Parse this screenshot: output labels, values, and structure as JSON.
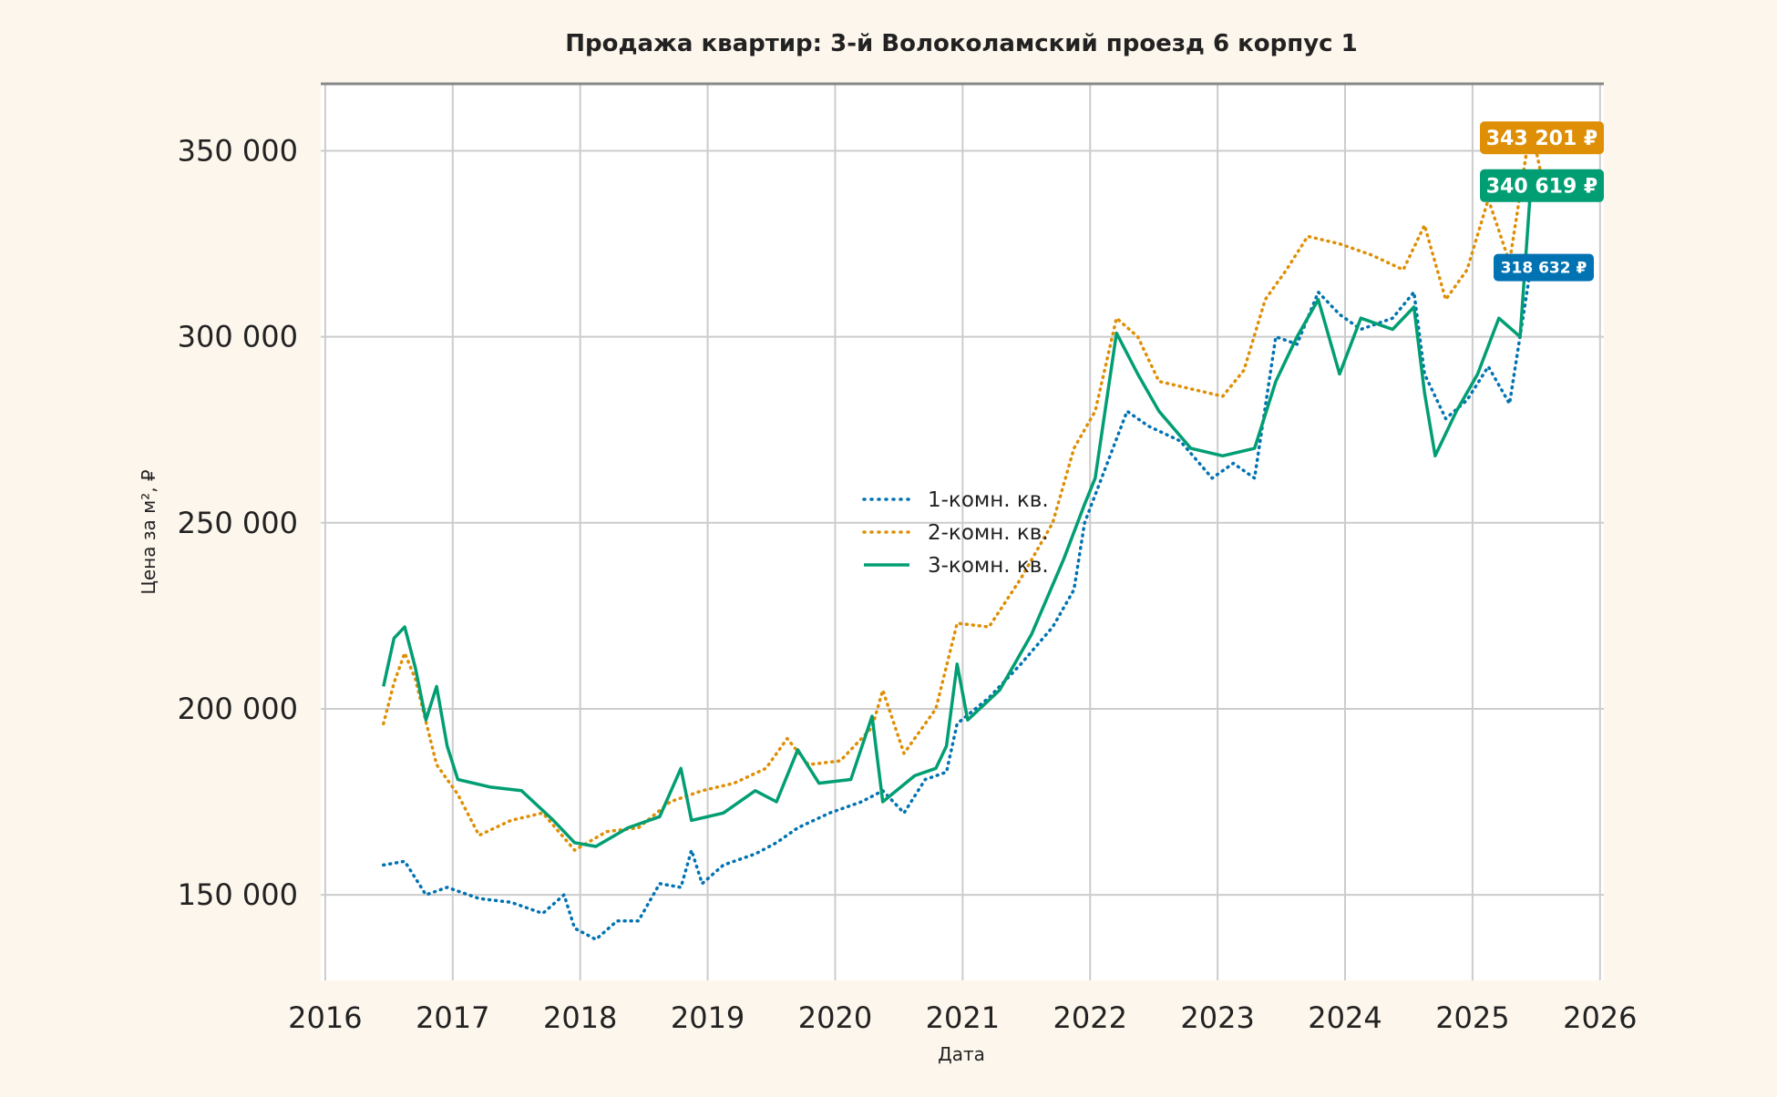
{
  "chart_data": {
    "type": "line",
    "title": "Продажа квартир: 3-й Волоколамский проезд 6 корпус 1",
    "xlabel": "Дата",
    "ylabel": "Цена за м², ₽",
    "xlim": [
      "2016-01",
      "2026-01"
    ],
    "ylim": [
      127000,
      368000
    ],
    "x_ticks": [
      "2016",
      "2017",
      "2018",
      "2019",
      "2020",
      "2021",
      "2022",
      "2023",
      "2024",
      "2025",
      "2026"
    ],
    "y_ticks": [
      {
        "value": 150000,
        "label": "150 000"
      },
      {
        "value": 200000,
        "label": "200 000"
      },
      {
        "value": 250000,
        "label": "250 000"
      },
      {
        "value": 300000,
        "label": "300 000"
      },
      {
        "value": 350000,
        "label": "350 000"
      }
    ],
    "grid": true,
    "legend_position": "center",
    "series": [
      {
        "name": "1-комн. кв.",
        "color": "#0173b2",
        "style": "dotted",
        "last_label": "318 632 ₽",
        "points": [
          [
            "2016-06",
            158000
          ],
          [
            "2016-08",
            159000
          ],
          [
            "2016-10",
            150000
          ],
          [
            "2016-12",
            152000
          ],
          [
            "2017-03",
            149000
          ],
          [
            "2017-06",
            148000
          ],
          [
            "2017-09",
            145000
          ],
          [
            "2017-11",
            150000
          ],
          [
            "2017-12",
            141000
          ],
          [
            "2018-02",
            138000
          ],
          [
            "2018-04",
            143000
          ],
          [
            "2018-06",
            143000
          ],
          [
            "2018-08",
            153000
          ],
          [
            "2018-10",
            152000
          ],
          [
            "2018-11",
            162000
          ],
          [
            "2018-12",
            153000
          ],
          [
            "2019-02",
            158000
          ],
          [
            "2019-05",
            161000
          ],
          [
            "2019-07",
            164000
          ],
          [
            "2019-09",
            168000
          ],
          [
            "2019-12",
            172000
          ],
          [
            "2020-03",
            175000
          ],
          [
            "2020-05",
            178000
          ],
          [
            "2020-07",
            172000
          ],
          [
            "2020-09",
            181000
          ],
          [
            "2020-11",
            183000
          ],
          [
            "2020-12",
            196000
          ],
          [
            "2021-03",
            203000
          ],
          [
            "2021-06",
            212000
          ],
          [
            "2021-09",
            222000
          ],
          [
            "2021-11",
            232000
          ],
          [
            "2021-12",
            250000
          ],
          [
            "2022-02",
            265000
          ],
          [
            "2022-04",
            280000
          ],
          [
            "2022-06",
            276000
          ],
          [
            "2022-09",
            272000
          ],
          [
            "2022-12",
            262000
          ],
          [
            "2023-02",
            266000
          ],
          [
            "2023-04",
            262000
          ],
          [
            "2023-06",
            300000
          ],
          [
            "2023-08",
            298000
          ],
          [
            "2023-10",
            312000
          ],
          [
            "2023-12",
            306000
          ],
          [
            "2024-02",
            302000
          ],
          [
            "2024-05",
            305000
          ],
          [
            "2024-07",
            312000
          ],
          [
            "2024-08",
            290000
          ],
          [
            "2024-10",
            278000
          ],
          [
            "2024-12",
            283000
          ],
          [
            "2025-02",
            292000
          ],
          [
            "2025-04",
            282000
          ],
          [
            "2025-06",
            318632
          ]
        ]
      },
      {
        "name": "2-комн. кв.",
        "color": "#de8f05",
        "style": "dotted",
        "last_label": "343 201 ₽",
        "points": [
          [
            "2016-06",
            196000
          ],
          [
            "2016-07",
            207000
          ],
          [
            "2016-08",
            215000
          ],
          [
            "2016-09",
            208000
          ],
          [
            "2016-11",
            185000
          ],
          [
            "2017-01",
            177000
          ],
          [
            "2017-03",
            166000
          ],
          [
            "2017-06",
            170000
          ],
          [
            "2017-09",
            172000
          ],
          [
            "2017-12",
            162000
          ],
          [
            "2018-03",
            167000
          ],
          [
            "2018-06",
            168000
          ],
          [
            "2018-09",
            175000
          ],
          [
            "2018-12",
            178000
          ],
          [
            "2019-03",
            180000
          ],
          [
            "2019-06",
            184000
          ],
          [
            "2019-08",
            192000
          ],
          [
            "2019-10",
            185000
          ],
          [
            "2020-01",
            186000
          ],
          [
            "2020-04",
            195000
          ],
          [
            "2020-05",
            205000
          ],
          [
            "2020-07",
            188000
          ],
          [
            "2020-10",
            200000
          ],
          [
            "2020-12",
            223000
          ],
          [
            "2021-03",
            222000
          ],
          [
            "2021-06",
            235000
          ],
          [
            "2021-09",
            250000
          ],
          [
            "2021-11",
            270000
          ],
          [
            "2022-01",
            280000
          ],
          [
            "2022-03",
            305000
          ],
          [
            "2022-05",
            300000
          ],
          [
            "2022-07",
            288000
          ],
          [
            "2022-10",
            286000
          ],
          [
            "2023-01",
            284000
          ],
          [
            "2023-03",
            291000
          ],
          [
            "2023-05",
            310000
          ],
          [
            "2023-07",
            318000
          ],
          [
            "2023-09",
            327000
          ],
          [
            "2023-12",
            325000
          ],
          [
            "2024-03",
            322000
          ],
          [
            "2024-06",
            318000
          ],
          [
            "2024-08",
            330000
          ],
          [
            "2024-10",
            310000
          ],
          [
            "2024-12",
            318000
          ],
          [
            "2025-02",
            337000
          ],
          [
            "2025-04",
            320000
          ],
          [
            "2025-06",
            357000
          ],
          [
            "2025-07",
            343201
          ]
        ]
      },
      {
        "name": "3-комн. кв.",
        "color": "#029e73",
        "style": "solid",
        "last_label": "340 619 ₽",
        "points": [
          [
            "2016-06",
            206000
          ],
          [
            "2016-07",
            219000
          ],
          [
            "2016-08",
            222000
          ],
          [
            "2016-09",
            211000
          ],
          [
            "2016-10",
            197000
          ],
          [
            "2016-11",
            206000
          ],
          [
            "2016-12",
            190000
          ],
          [
            "2017-01",
            181000
          ],
          [
            "2017-04",
            179000
          ],
          [
            "2017-07",
            178000
          ],
          [
            "2017-10",
            170000
          ],
          [
            "2017-12",
            164000
          ],
          [
            "2018-02",
            163000
          ],
          [
            "2018-05",
            168000
          ],
          [
            "2018-08",
            171000
          ],
          [
            "2018-10",
            184000
          ],
          [
            "2018-11",
            170000
          ],
          [
            "2019-02",
            172000
          ],
          [
            "2019-05",
            178000
          ],
          [
            "2019-07",
            175000
          ],
          [
            "2019-09",
            189000
          ],
          [
            "2019-11",
            180000
          ],
          [
            "2020-02",
            181000
          ],
          [
            "2020-04",
            198000
          ],
          [
            "2020-05",
            175000
          ],
          [
            "2020-08",
            182000
          ],
          [
            "2020-10",
            184000
          ],
          [
            "2020-11",
            190000
          ],
          [
            "2020-12",
            212000
          ],
          [
            "2021-01",
            197000
          ],
          [
            "2021-04",
            205000
          ],
          [
            "2021-07",
            220000
          ],
          [
            "2021-10",
            240000
          ],
          [
            "2021-12",
            255000
          ],
          [
            "2022-01",
            262000
          ],
          [
            "2022-03",
            301000
          ],
          [
            "2022-05",
            290000
          ],
          [
            "2022-07",
            280000
          ],
          [
            "2022-10",
            270000
          ],
          [
            "2023-01",
            268000
          ],
          [
            "2023-04",
            270000
          ],
          [
            "2023-06",
            288000
          ],
          [
            "2023-08",
            300000
          ],
          [
            "2023-10",
            310000
          ],
          [
            "2023-12",
            290000
          ],
          [
            "2024-02",
            305000
          ],
          [
            "2024-05",
            302000
          ],
          [
            "2024-07",
            308000
          ],
          [
            "2024-08",
            285000
          ],
          [
            "2024-09",
            268000
          ],
          [
            "2024-11",
            280000
          ],
          [
            "2025-01",
            290000
          ],
          [
            "2025-03",
            305000
          ],
          [
            "2025-05",
            300000
          ],
          [
            "2025-06",
            340619
          ]
        ]
      }
    ]
  }
}
